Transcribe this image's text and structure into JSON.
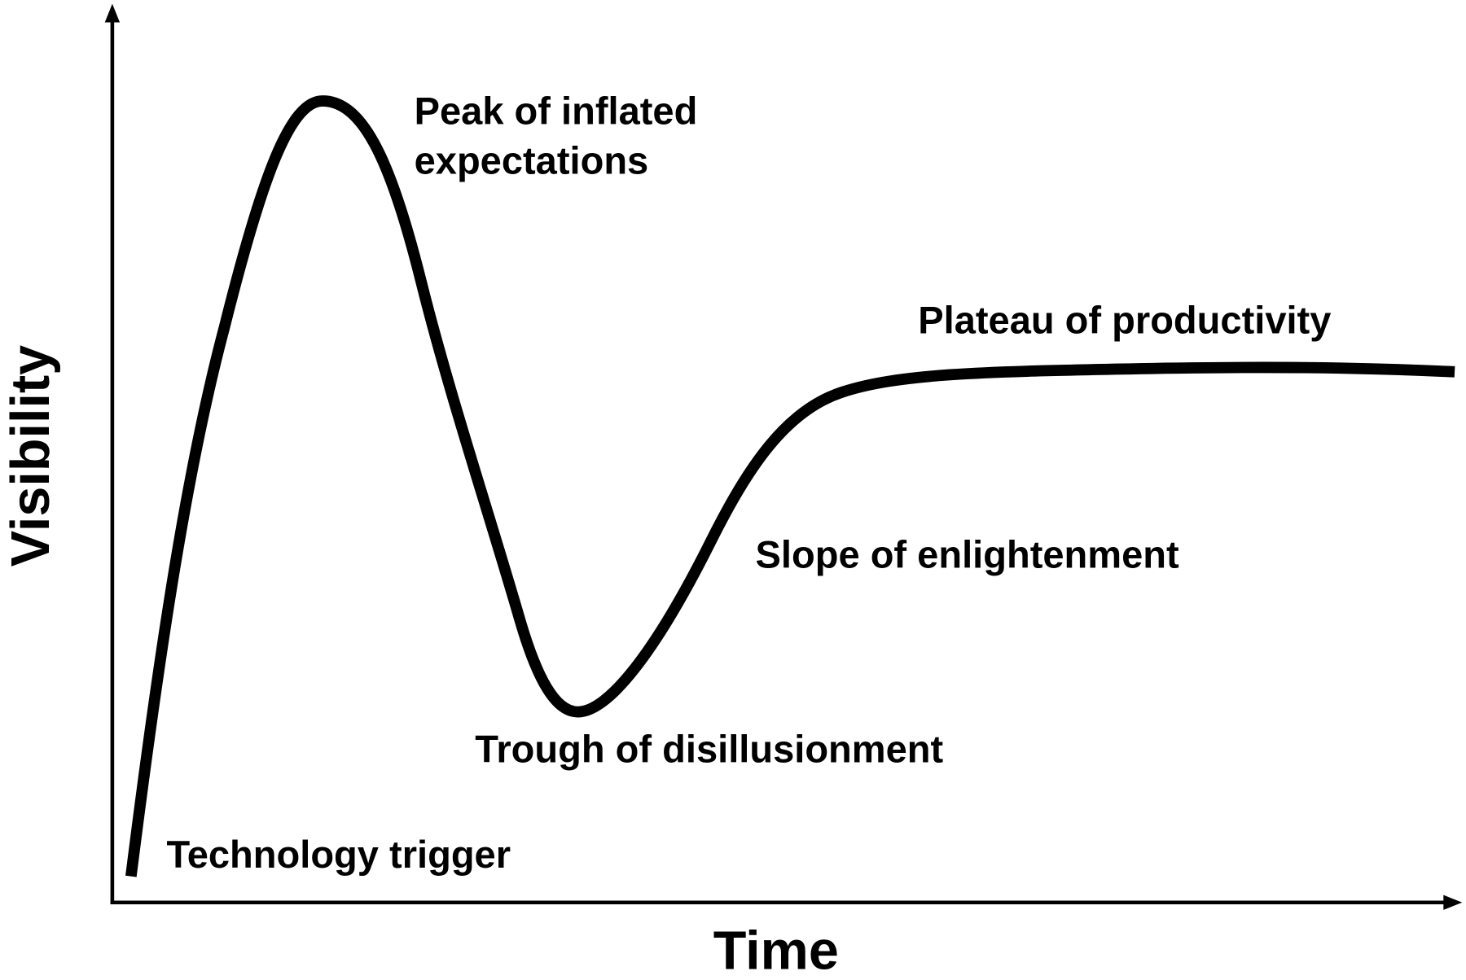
{
  "axes": {
    "x_label": "Time",
    "y_label": "Visibility"
  },
  "phases": [
    {
      "lines": [
        "Technology trigger"
      ]
    },
    {
      "lines": [
        "Peak of inflated",
        "expectations"
      ]
    },
    {
      "lines": [
        "Trough of disillusionment"
      ]
    },
    {
      "lines": [
        "Slope of enlightenment"
      ]
    },
    {
      "lines": [
        "Plateau of productivity"
      ]
    }
  ]
}
